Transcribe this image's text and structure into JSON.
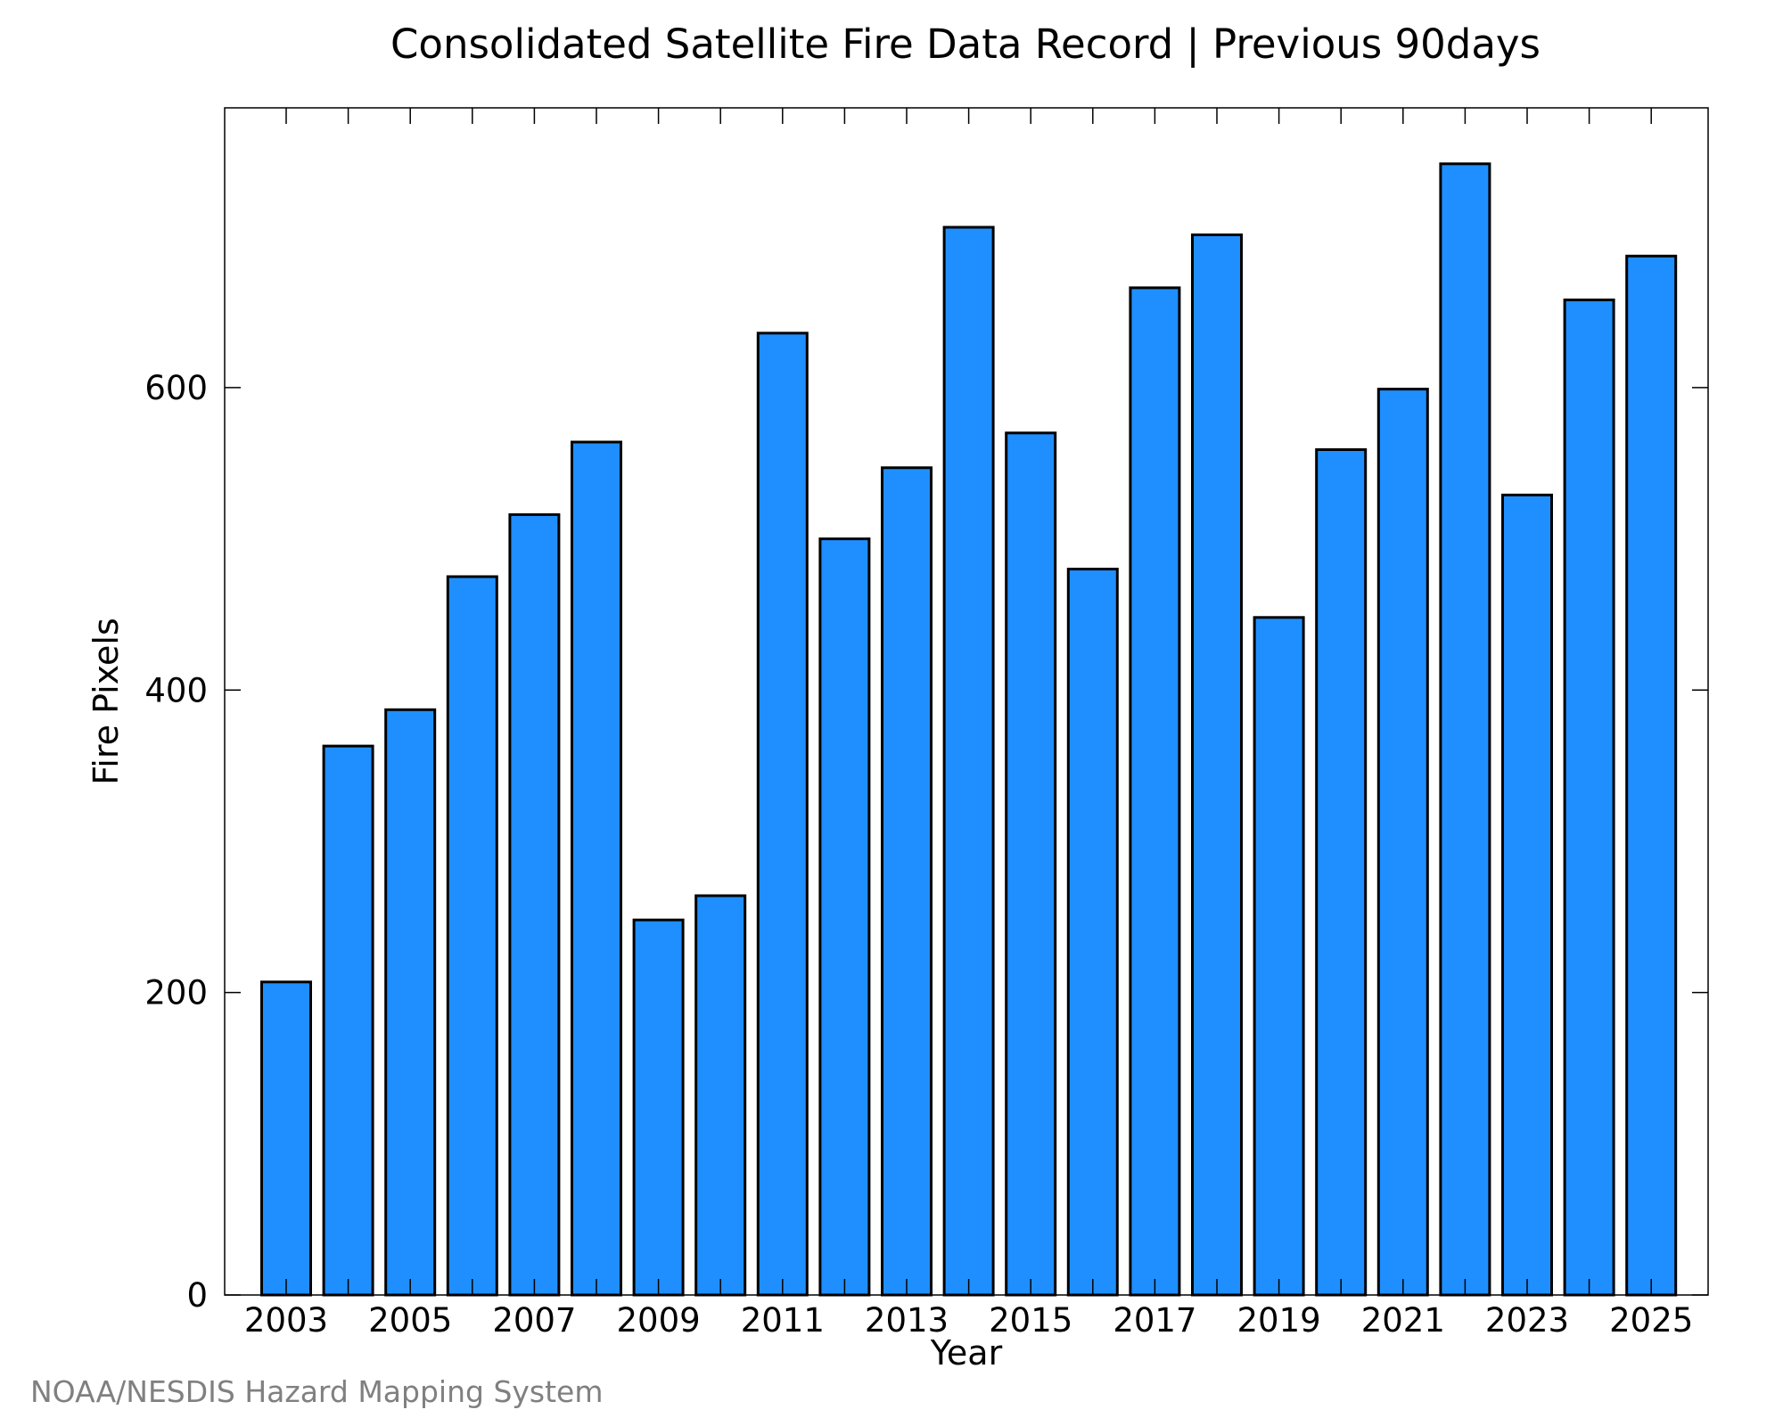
{
  "chart_data": {
    "type": "bar",
    "title": "Consolidated Satellite Fire Data Record | Previous 90days",
    "xlabel": "Year",
    "ylabel": "Fire Pixels",
    "categories": [
      "2003",
      "2004",
      "2005",
      "2006",
      "2007",
      "2008",
      "2009",
      "2010",
      "2011",
      "2012",
      "2013",
      "2014",
      "2015",
      "2016",
      "2017",
      "2018",
      "2019",
      "2020",
      "2021",
      "2022",
      "2023",
      "2024",
      "2025"
    ],
    "values": [
      207,
      363,
      387,
      475,
      516,
      564,
      248,
      264,
      636,
      500,
      547,
      706,
      570,
      480,
      666,
      701,
      448,
      559,
      599,
      748,
      529,
      658,
      687
    ],
    "x_tick_labels": [
      "2003",
      "2005",
      "2007",
      "2009",
      "2011",
      "2013",
      "2015",
      "2017",
      "2019",
      "2021",
      "2023",
      "2025"
    ],
    "y_ticks": [
      0,
      200,
      400,
      600
    ],
    "ylim": [
      0,
      785
    ],
    "bar_color": "#1f8fff",
    "bar_edge_color": "#000000",
    "grid": false,
    "legend": "none"
  },
  "footer": {
    "source": "NOAA/NESDIS Hazard Mapping System"
  }
}
